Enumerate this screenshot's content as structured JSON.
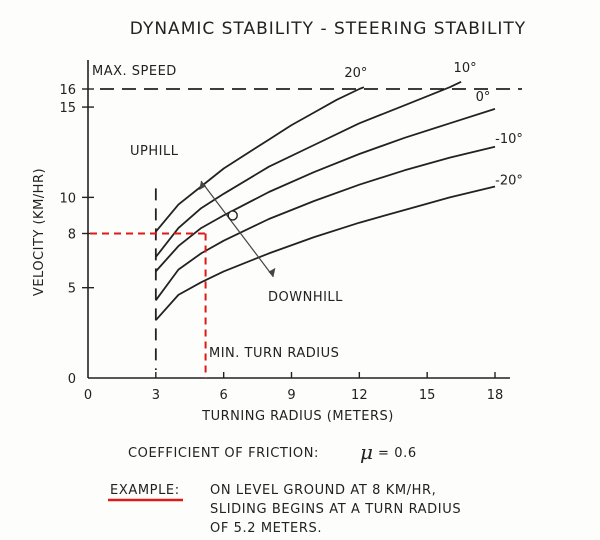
{
  "chart_data": {
    "type": "line",
    "title": "DYNAMIC STABILITY - STEERING STABILITY",
    "xlabel": "TURNING RADIUS (METERS)",
    "ylabel": "VELOCITY (KM/HR)",
    "xlim": [
      0,
      19.5
    ],
    "ylim": [
      0,
      18
    ],
    "x_ticks": [
      "0",
      "3",
      "6",
      "9",
      "12",
      "15",
      "18"
    ],
    "x_tick_values": [
      0,
      3,
      6,
      9,
      12,
      15,
      18
    ],
    "y_ticks": [
      "0",
      "5",
      "8",
      "10",
      "15",
      "16"
    ],
    "y_tick_values": [
      0,
      5,
      8,
      10,
      15,
      16
    ],
    "grid": false,
    "series": [
      {
        "name": "20°",
        "x": [
          3,
          4,
          5,
          6,
          7,
          8,
          9,
          10,
          11,
          12,
          12.2
        ],
        "y": [
          8.1,
          9.6,
          10.6,
          11.6,
          12.4,
          13.2,
          14.0,
          14.7,
          15.4,
          16.0,
          16.1
        ]
      },
      {
        "name": "10°",
        "x": [
          3,
          4,
          5,
          6,
          8,
          10,
          12,
          14,
          16,
          16.5
        ],
        "y": [
          6.7,
          8.3,
          9.4,
          10.2,
          11.7,
          12.9,
          14.1,
          15.1,
          16.1,
          16.4
        ]
      },
      {
        "name": "0°",
        "x": [
          3,
          4,
          5,
          6,
          8,
          10,
          12,
          14,
          16,
          18
        ],
        "y": [
          5.9,
          7.3,
          8.3,
          9.0,
          10.3,
          11.4,
          12.4,
          13.3,
          14.1,
          14.9
        ]
      },
      {
        "name": "-10°",
        "x": [
          3,
          4,
          5,
          6,
          8,
          10,
          12,
          14,
          16,
          18
        ],
        "y": [
          4.3,
          6.0,
          6.9,
          7.6,
          8.8,
          9.8,
          10.7,
          11.5,
          12.2,
          12.8
        ]
      },
      {
        "name": "-20°",
        "x": [
          3,
          4,
          5,
          6,
          8,
          10,
          12,
          14,
          16,
          18
        ],
        "y": [
          3.2,
          4.6,
          5.3,
          5.9,
          6.9,
          7.8,
          8.6,
          9.3,
          10.0,
          10.6
        ]
      }
    ],
    "max_speed": {
      "label": "MAX. SPEED",
      "y": 16
    },
    "min_turn_radius": {
      "label": "MIN. TURN RADIUS",
      "x": 3
    },
    "slope_arrow": {
      "uphill_label": "UPHILL",
      "downhill_label": "DOWNHILL",
      "center": [
        6.4,
        9.0
      ]
    },
    "example_point": {
      "x": 5.2,
      "y": 8,
      "color": "#e01818"
    }
  },
  "friction": {
    "label": "COEFFICIENT OF FRICTION:",
    "symbol": "μ",
    "value": "= 0.6"
  },
  "example": {
    "label": "EXAMPLE:",
    "lines": [
      "ON LEVEL GROUND AT 8 KM/HR,",
      "SLIDING BEGINS AT A TURN RADIUS",
      "OF 5.2 METERS."
    ],
    "underline_color": "#e01818"
  }
}
